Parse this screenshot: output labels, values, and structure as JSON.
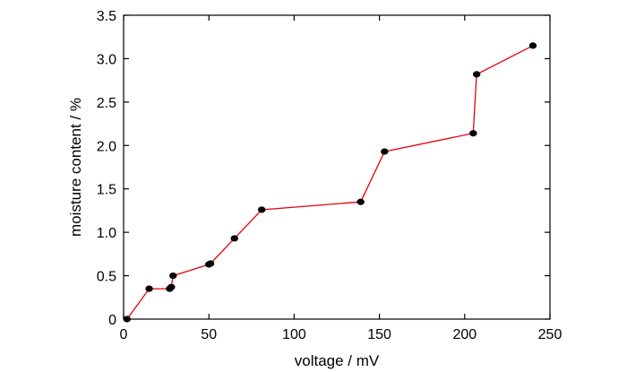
{
  "chart_data": {
    "type": "line",
    "title": "",
    "xlabel": "voltage / mV",
    "ylabel": "moisture content / %",
    "xlim": [
      0,
      250
    ],
    "ylim": [
      0,
      3.5
    ],
    "xticks": [
      0,
      50,
      100,
      150,
      200,
      250
    ],
    "yticks": [
      0,
      0.5,
      1.0,
      1.5,
      2.0,
      2.5,
      3.0,
      3.5
    ],
    "xtick_labels": [
      "0",
      "50",
      "100",
      "150",
      "200",
      "250"
    ],
    "ytick_labels": [
      "0",
      "0.5",
      "1.0",
      "1.5",
      "2.0",
      "2.5",
      "3.0",
      "3.5"
    ],
    "grid": false,
    "line_color": "#e8000b",
    "marker_color": "#000000",
    "series": [
      {
        "x": [
          2,
          15,
          27,
          28,
          29,
          50,
          51,
          65,
          81,
          139,
          153,
          205,
          207,
          240
        ],
        "y": [
          0,
          0.35,
          0.35,
          0.37,
          0.5,
          0.63,
          0.64,
          0.93,
          1.26,
          1.35,
          1.93,
          2.14,
          2.82,
          3.15
        ]
      }
    ]
  }
}
